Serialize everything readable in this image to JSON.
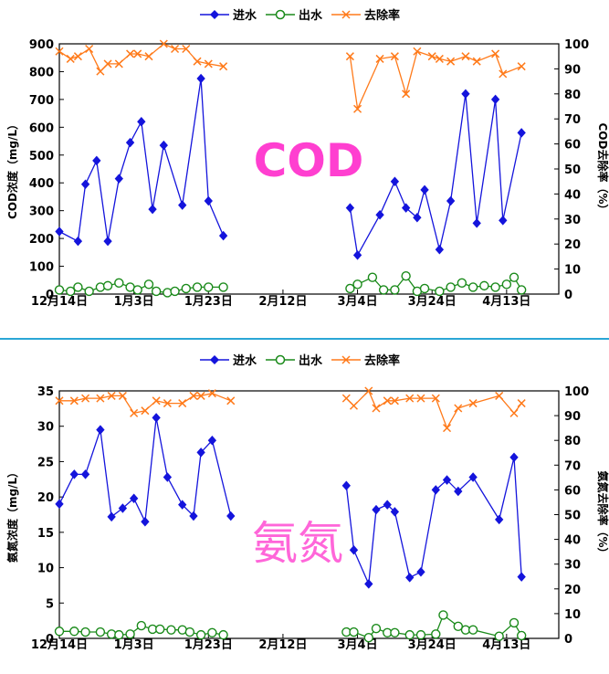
{
  "colors": {
    "inflow": "#1414dc",
    "outflow": "#1a8a1a",
    "removal": "#ff7a1a",
    "divider": "#2aa6d6",
    "big_label_cod": "#ff3fd0",
    "big_label_nh": "#ff66d9"
  },
  "legend": {
    "inflow": "进水",
    "outflow": "出水",
    "removal": "去除率"
  },
  "x_ticks": [
    "12月14日",
    "1月3日",
    "1月23日",
    "2月12日",
    "3月4日",
    "3月24日",
    "4月13日"
  ],
  "x_tick_days": [
    0,
    20,
    40,
    60,
    80,
    100,
    120
  ],
  "chart_data": [
    {
      "type": "line",
      "big_label": "COD",
      "xlabel": "",
      "ylabel": "COD浓度（mg/L）",
      "y2label": "COD去除率（%）",
      "xlim": [
        "12月14日",
        "4月27日"
      ],
      "ylim": [
        0,
        900
      ],
      "y2lim": [
        0,
        100
      ],
      "yticks": [
        0,
        100,
        200,
        300,
        400,
        500,
        600,
        700,
        800,
        900
      ],
      "y2ticks": [
        0,
        10,
        20,
        30,
        40,
        50,
        60,
        70,
        80,
        90,
        100
      ],
      "grid": false,
      "legend_position": "top",
      "series": [
        {
          "name": "进水",
          "axis": "left",
          "marker": "diamond",
          "x": [
            "12月14日",
            "12月19日",
            "12月21日",
            "12月24日",
            "12月27日",
            "12月30日",
            "1月2日",
            "1月5日",
            "1月8日",
            "1月11日",
            "1月16日",
            "1月21日",
            "1月23日",
            "1月27日",
            "3月2日",
            "3月4日",
            "3月10日",
            "3月14日",
            "3月17日",
            "3月20日",
            "3月22日",
            "3月26日",
            "3月29日",
            "4月2日",
            "4月5日",
            "4月10日",
            "4月12日",
            "4月17日"
          ],
          "values": [
            225,
            190,
            395,
            480,
            190,
            415,
            545,
            620,
            305,
            535,
            320,
            775,
            335,
            210,
            310,
            140,
            285,
            405,
            310,
            275,
            375,
            160,
            335,
            720,
            255,
            700,
            265,
            580
          ]
        },
        {
          "name": "出水",
          "axis": "left",
          "marker": "circle",
          "x": [
            "12月14日",
            "12月17日",
            "12月19日",
            "12月22日",
            "12月25日",
            "12月27日",
            "12月30日",
            "1月2日",
            "1月4日",
            "1月7日",
            "1月9日",
            "1月12日",
            "1月14日",
            "1月17日",
            "1月20日",
            "1月23日",
            "1月27日",
            "3月2日",
            "3月4日",
            "3月8日",
            "3月11日",
            "3月14日",
            "3月17日",
            "3月20日",
            "3月22日",
            "3月26日",
            "3月29日",
            "4月1日",
            "4月4日",
            "4月7日",
            "4月10日",
            "4月13日",
            "4月15日",
            "4月17日"
          ],
          "values": [
            15,
            10,
            25,
            10,
            25,
            30,
            40,
            25,
            15,
            35,
            10,
            5,
            10,
            20,
            25,
            25,
            25,
            20,
            35,
            60,
            15,
            15,
            65,
            10,
            20,
            10,
            25,
            40,
            25,
            30,
            25,
            35,
            60,
            15
          ]
        },
        {
          "name": "去除率",
          "axis": "right",
          "marker": "x",
          "x": [
            "12月14日",
            "12月17日",
            "12月19日",
            "12月22日",
            "12月25日",
            "12月27日",
            "12月30日",
            "1月2日",
            "1月4日",
            "1月7日",
            "1月11日",
            "1月14日",
            "1月17日",
            "1月20日",
            "1月23日",
            "1月27日",
            "3月2日",
            "3月4日",
            "3月10日",
            "3月14日",
            "3月17日",
            "3月20日",
            "3月24日",
            "3月26日",
            "3月29日",
            "4月2日",
            "4月5日",
            "4月10日",
            "4月12日",
            "4月17日"
          ],
          "values": [
            97,
            94,
            95,
            98,
            89,
            92,
            92,
            96,
            96,
            95,
            100,
            98,
            98,
            93,
            92,
            91,
            95,
            74,
            94,
            95,
            80,
            97,
            95,
            94,
            93,
            95,
            93,
            96,
            88,
            91
          ]
        }
      ]
    },
    {
      "type": "line",
      "big_label": "氨氮",
      "xlabel": "",
      "ylabel": "氨氮浓度（mg/L）",
      "y2label": "氨氮去除率（%）",
      "xlim": [
        "12月14日",
        "4月27日"
      ],
      "ylim": [
        0,
        35
      ],
      "y2lim": [
        0,
        100
      ],
      "yticks": [
        0,
        5,
        10,
        15,
        20,
        25,
        30,
        35
      ],
      "y2ticks": [
        0,
        10,
        20,
        30,
        40,
        50,
        60,
        70,
        80,
        90,
        100
      ],
      "grid": false,
      "legend_position": "top",
      "series": [
        {
          "name": "进水",
          "axis": "left",
          "marker": "diamond",
          "x": [
            "12月14日",
            "12月18日",
            "12月21日",
            "12月25日",
            "12月28日",
            "12月31日",
            "1月3日",
            "1月6日",
            "1月9日",
            "1月12日",
            "1月16日",
            "1月19日",
            "1月21日",
            "1月24日",
            "1月29日",
            "3月1日",
            "3月3日",
            "3月7日",
            "3月9日",
            "3月12日",
            "3月14日",
            "3月18日",
            "3月21日",
            "3月25日",
            "3月28日",
            "3月31日",
            "4月4日",
            "4月11日",
            "4月15日",
            "4月17日"
          ],
          "values": [
            19.0,
            23.2,
            23.2,
            29.5,
            17.2,
            18.4,
            19.8,
            16.5,
            31.2,
            22.8,
            18.9,
            17.3,
            26.3,
            28.0,
            17.3,
            21.6,
            12.5,
            7.7,
            18.2,
            18.9,
            17.9,
            8.6,
            9.4,
            21.0,
            22.4,
            20.8,
            22.8,
            16.8,
            25.6,
            8.7
          ]
        },
        {
          "name": "出水",
          "axis": "left",
          "marker": "circle",
          "x": [
            "12月14日",
            "12月18日",
            "12月21日",
            "12月25日",
            "12月28日",
            "12月30日",
            "1月2日",
            "1月5日",
            "1月8日",
            "1月10日",
            "1月13日",
            "1月16日",
            "1月18日",
            "1月21日",
            "1月24日",
            "1月27日",
            "3月1日",
            "3月3日",
            "3月7日",
            "3月9日",
            "3月12日",
            "3月14日",
            "3月18日",
            "3月21日",
            "3月25日",
            "3月27日",
            "3月31日",
            "4月2日",
            "4月4日",
            "4月11日",
            "4月15日",
            "4月17日"
          ],
          "values": [
            1.0,
            1.0,
            0.9,
            0.9,
            0.6,
            0.5,
            0.6,
            1.8,
            1.3,
            1.3,
            1.2,
            1.2,
            0.9,
            0.5,
            0.8,
            0.5,
            0.9,
            0.9,
            0.1,
            1.4,
            0.8,
            0.8,
            0.5,
            0.5,
            0.6,
            3.3,
            1.7,
            1.2,
            1.2,
            0.3,
            2.2,
            0.4
          ]
        },
        {
          "name": "去除率",
          "axis": "right",
          "marker": "x",
          "x": [
            "12月14日",
            "12月18日",
            "12月21日",
            "12月25日",
            "12月28日",
            "12月31日",
            "1月3日",
            "1月6日",
            "1月9日",
            "1月12日",
            "1月16日",
            "1月19日",
            "1月21日",
            "1月24日",
            "1月29日",
            "3月1日",
            "3月3日",
            "3月7日",
            "3月9日",
            "3月12日",
            "3月14日",
            "3月18日",
            "3月21日",
            "3月25日",
            "3月28日",
            "3月31日",
            "4月4日",
            "4月11日",
            "4月15日",
            "4月17日"
          ],
          "values": [
            96,
            96,
            97,
            97,
            98,
            98,
            91,
            92,
            96,
            95,
            95,
            98,
            98,
            99,
            96,
            97,
            94,
            100,
            93,
            96,
            96,
            97,
            97,
            97,
            85,
            93,
            95,
            98,
            91,
            95
          ]
        }
      ]
    }
  ]
}
